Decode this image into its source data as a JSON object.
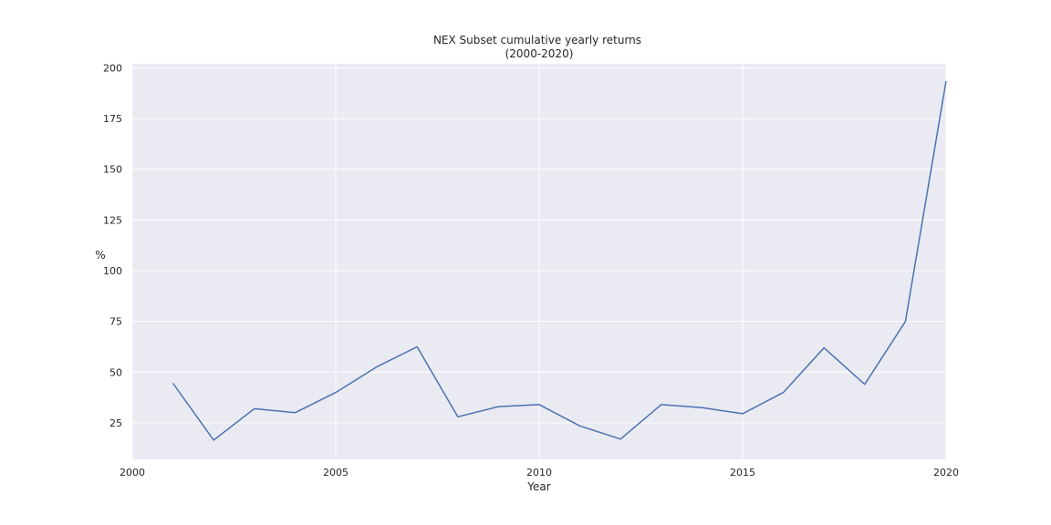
{
  "chart_data": {
    "type": "line",
    "title": "NEX Subset cumulative yearly returns",
    "subtitle": "(2000-2020)",
    "xlabel": "Year",
    "ylabel": "%",
    "xlim": [
      2000,
      2020
    ],
    "ylim": [
      7,
      202
    ],
    "grid": true,
    "x_ticks": [
      2000,
      2005,
      2010,
      2015,
      2020
    ],
    "y_ticks": [
      25,
      50,
      75,
      100,
      125,
      150,
      175,
      200
    ],
    "colors": {
      "line": "#4c72b0",
      "plot_bg": "#eaeaf2",
      "grid": "#ffffff"
    },
    "series": [
      {
        "x": [
          2001,
          2002,
          2003,
          2004,
          2005,
          2006,
          2007,
          2008,
          2009,
          2010,
          2011,
          2012,
          2013,
          2014,
          2015,
          2016,
          2017,
          2018,
          2019,
          2020
        ],
        "values": [
          44.5,
          16.5,
          32.0,
          30.0,
          40.0,
          52.5,
          62.5,
          28.0,
          33.0,
          34.0,
          23.5,
          17.0,
          34.0,
          32.5,
          29.5,
          40.0,
          62.0,
          44.0,
          75.0,
          193.5
        ]
      }
    ]
  }
}
